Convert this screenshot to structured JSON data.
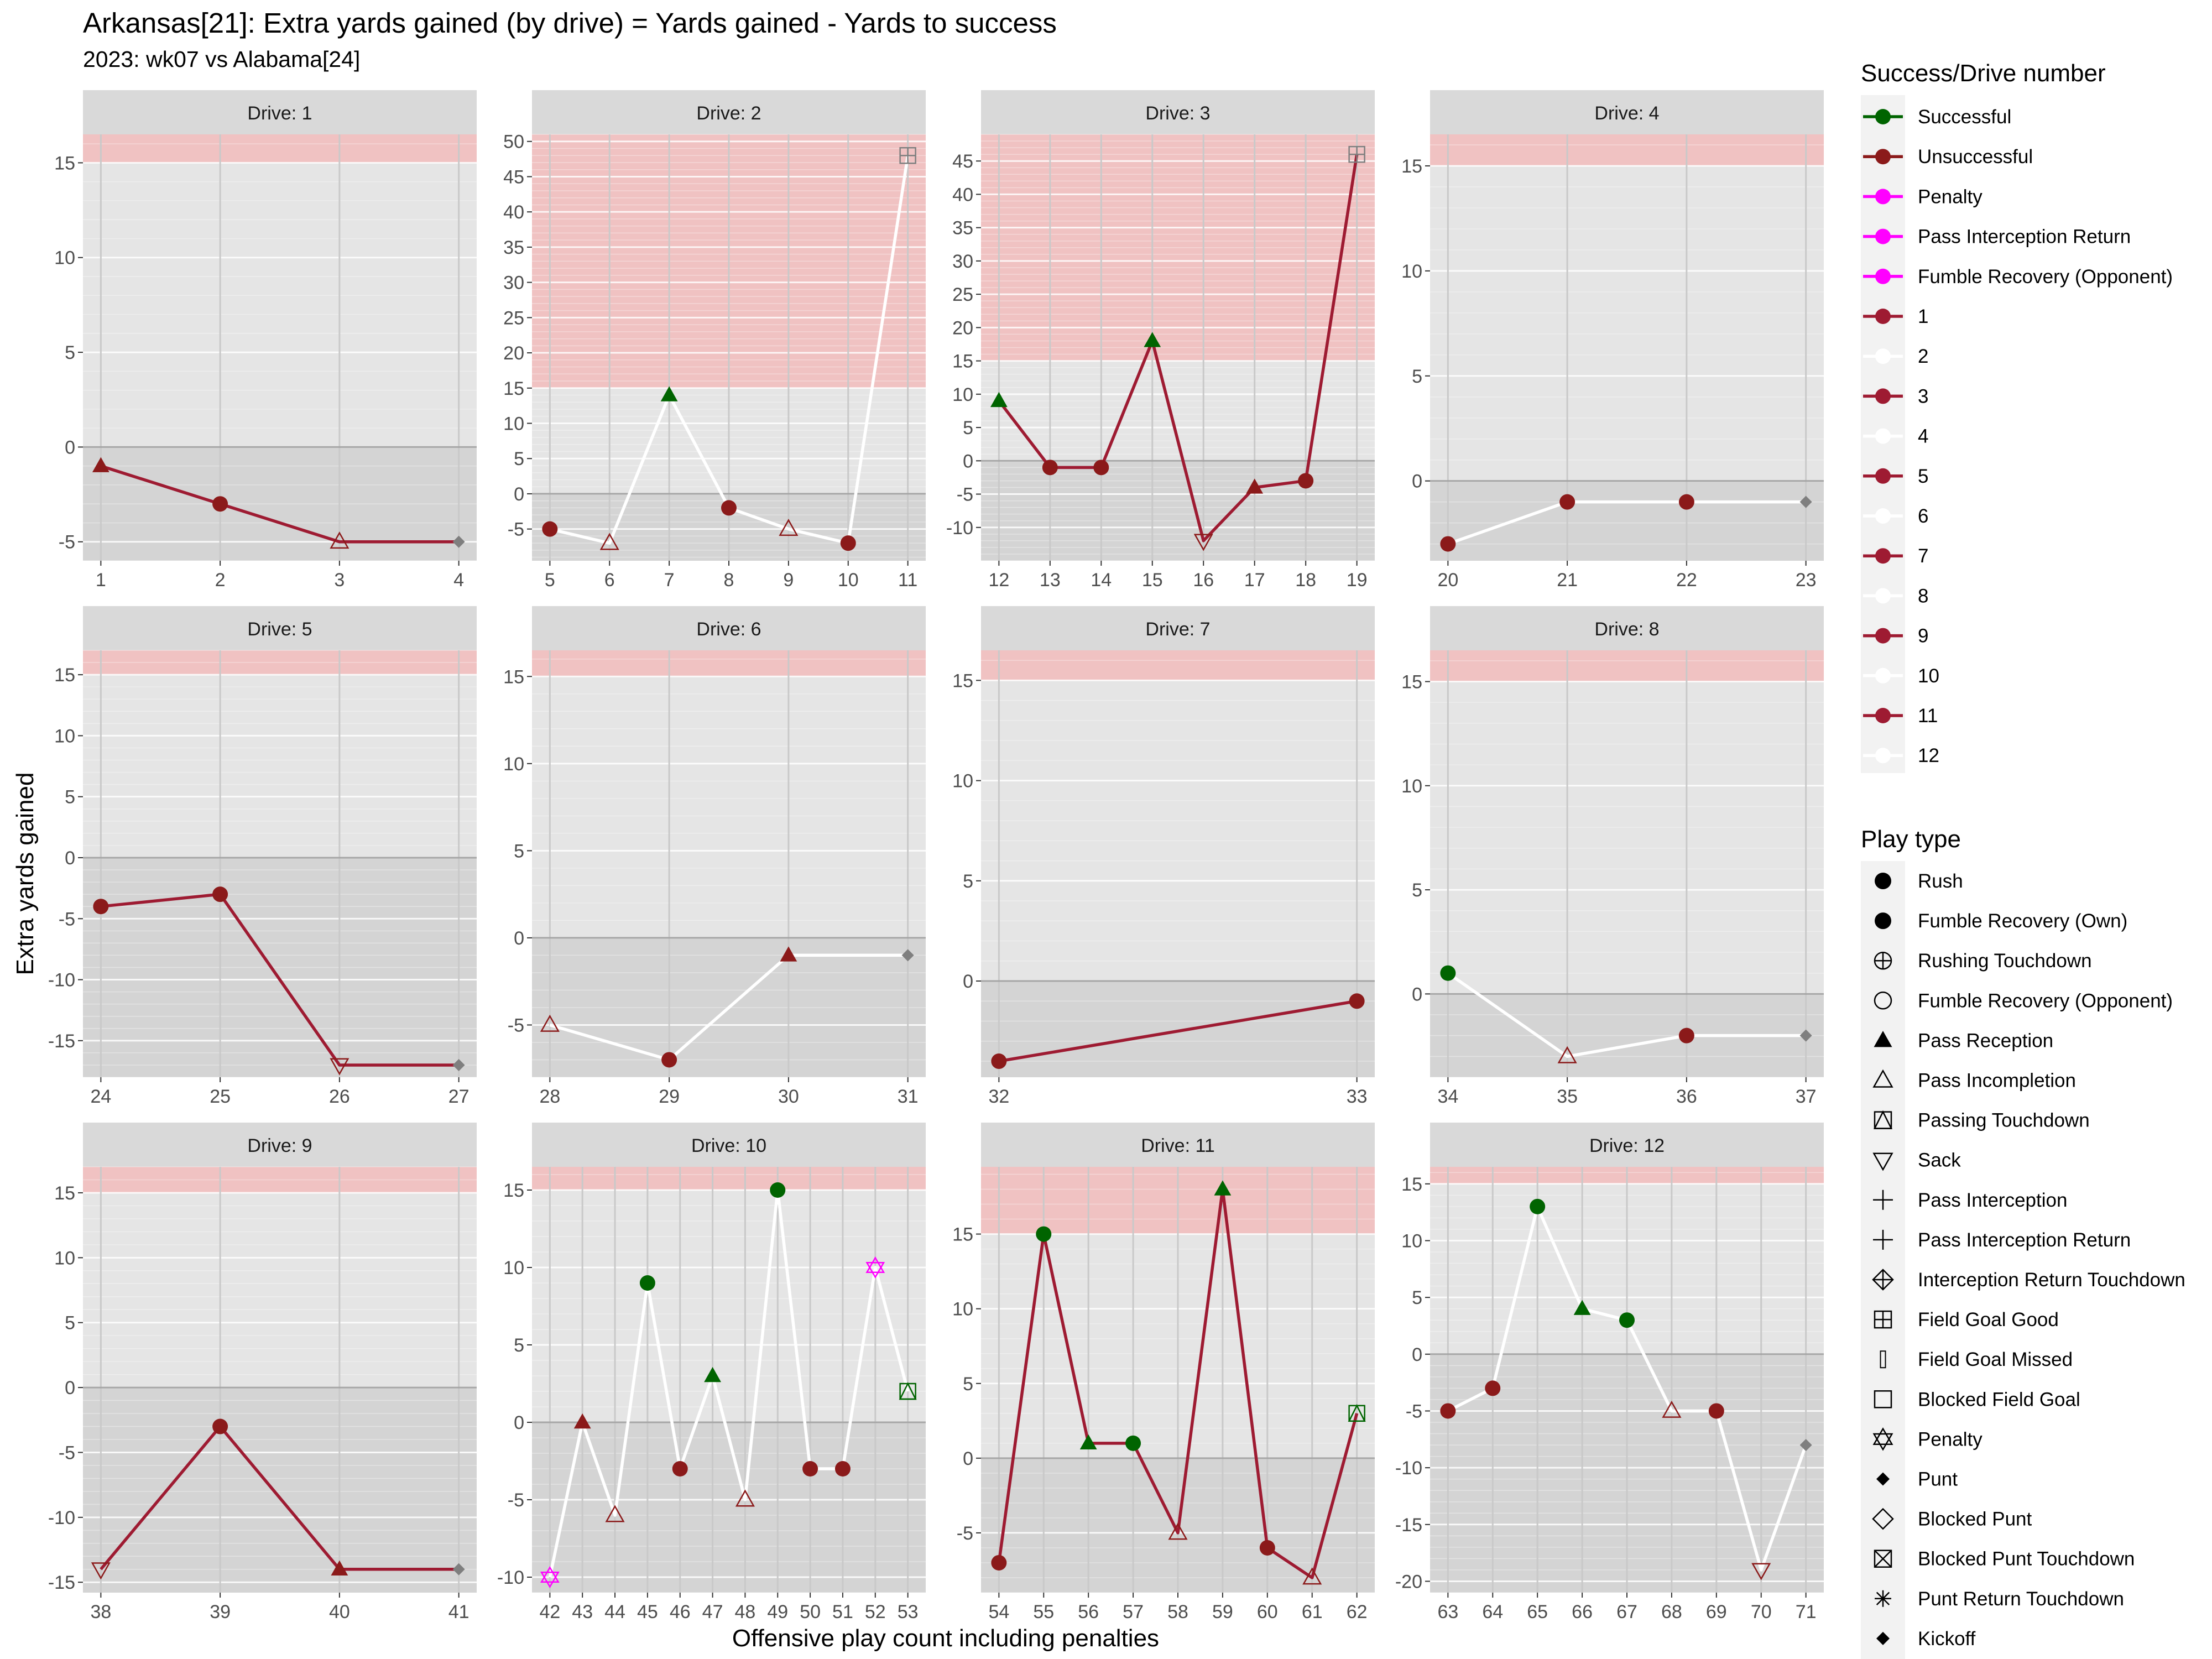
{
  "title": "Arkansas[21]: Extra yards gained (by drive) = Yards gained - Yards to success",
  "subtitle": "2023: wk07 vs Alabama[24]",
  "colors": {
    "panel_bg": "#e5e5e5",
    "shade_below_zero": "#d4d4d4",
    "success_band": "#f0c2c2",
    "strip_bg": "#d9d9d9",
    "successful": "#006400",
    "unsuccessful": "#8b1a1a",
    "penalty": "#ff00ff",
    "drive_line_odd": "#9e1b32",
    "drive_line_even": "#ffffff",
    "end_marker": "#7f7f7f"
  },
  "chart_data": {
    "type": "line",
    "xlabel": "Offensive play count including penalties",
    "ylabel": "Extra yards gained",
    "success_threshold": 15,
    "panels": [
      {
        "label": "Drive: 1",
        "ylim": [
          -6,
          16.5
        ],
        "yticks": [
          -5,
          0,
          5,
          10,
          15
        ],
        "xticks": [
          1,
          2,
          3,
          4
        ],
        "points": [
          {
            "x": 1,
            "y": -1,
            "type": "pass-reception",
            "result": "unsuccessful"
          },
          {
            "x": 2,
            "y": -3,
            "type": "rush",
            "result": "unsuccessful"
          },
          {
            "x": 3,
            "y": -5,
            "type": "pass-incompletion",
            "result": "unsuccessful"
          },
          {
            "x": 4,
            "y": -5,
            "type": "punt",
            "result": "end"
          }
        ]
      },
      {
        "label": "Drive: 2",
        "ylim": [
          -9.5,
          51
        ],
        "yticks": [
          -5,
          0,
          5,
          10,
          15,
          20,
          25,
          30,
          35,
          40,
          45,
          50
        ],
        "xticks": [
          5,
          6,
          7,
          8,
          9,
          10,
          11
        ],
        "points": [
          {
            "x": 5,
            "y": -5,
            "type": "rush",
            "result": "unsuccessful"
          },
          {
            "x": 6,
            "y": -7,
            "type": "pass-incompletion",
            "result": "unsuccessful"
          },
          {
            "x": 7,
            "y": 14,
            "type": "pass-reception",
            "result": "successful"
          },
          {
            "x": 8,
            "y": -2,
            "type": "rush",
            "result": "unsuccessful"
          },
          {
            "x": 9,
            "y": -5,
            "type": "pass-incompletion",
            "result": "unsuccessful"
          },
          {
            "x": 10,
            "y": -7,
            "type": "rush",
            "result": "unsuccessful"
          },
          {
            "x": 11,
            "y": 48,
            "type": "field-goal-good",
            "result": "end"
          }
        ]
      },
      {
        "label": "Drive: 3",
        "ylim": [
          -15,
          49
        ],
        "yticks": [
          -10,
          -5,
          0,
          5,
          10,
          15,
          20,
          25,
          30,
          35,
          40,
          45
        ],
        "xticks": [
          12,
          13,
          14,
          15,
          16,
          17,
          18,
          19
        ],
        "points": [
          {
            "x": 12,
            "y": 9,
            "type": "pass-reception",
            "result": "successful"
          },
          {
            "x": 13,
            "y": -1,
            "type": "rush",
            "result": "unsuccessful"
          },
          {
            "x": 14,
            "y": -1,
            "type": "rush",
            "result": "unsuccessful"
          },
          {
            "x": 15,
            "y": 18,
            "type": "pass-reception",
            "result": "successful"
          },
          {
            "x": 16,
            "y": -12,
            "type": "sack",
            "result": "unsuccessful"
          },
          {
            "x": 17,
            "y": -4,
            "type": "pass-reception",
            "result": "unsuccessful"
          },
          {
            "x": 18,
            "y": -3,
            "type": "rush",
            "result": "unsuccessful"
          },
          {
            "x": 19,
            "y": 46,
            "type": "field-goal-good",
            "result": "end"
          }
        ]
      },
      {
        "label": "Drive: 4",
        "ylim": [
          -3.8,
          16.5
        ],
        "yticks": [
          0,
          5,
          10,
          15
        ],
        "xticks": [
          20,
          21,
          22,
          23
        ],
        "points": [
          {
            "x": 20,
            "y": -3,
            "type": "rush",
            "result": "unsuccessful"
          },
          {
            "x": 21,
            "y": -1,
            "type": "rush",
            "result": "unsuccessful"
          },
          {
            "x": 22,
            "y": -1,
            "type": "rush",
            "result": "unsuccessful"
          },
          {
            "x": 23,
            "y": -1,
            "type": "punt",
            "result": "end"
          }
        ]
      },
      {
        "label": "Drive: 5",
        "ylim": [
          -18,
          17
        ],
        "yticks": [
          -15,
          -10,
          -5,
          0,
          5,
          10,
          15
        ],
        "xticks": [
          24,
          25,
          26,
          27
        ],
        "points": [
          {
            "x": 24,
            "y": -4,
            "type": "rush",
            "result": "unsuccessful"
          },
          {
            "x": 25,
            "y": -3,
            "type": "rush",
            "result": "unsuccessful"
          },
          {
            "x": 26,
            "y": -17,
            "type": "sack",
            "result": "unsuccessful"
          },
          {
            "x": 27,
            "y": -17,
            "type": "punt",
            "result": "end"
          }
        ]
      },
      {
        "label": "Drive: 6",
        "ylim": [
          -8,
          16.5
        ],
        "yticks": [
          -5,
          0,
          5,
          10,
          15
        ],
        "xticks": [
          28,
          29,
          30,
          31
        ],
        "points": [
          {
            "x": 28,
            "y": -5,
            "type": "pass-incompletion",
            "result": "unsuccessful"
          },
          {
            "x": 29,
            "y": -7,
            "type": "rush",
            "result": "unsuccessful"
          },
          {
            "x": 30,
            "y": -1,
            "type": "pass-reception",
            "result": "unsuccessful"
          },
          {
            "x": 31,
            "y": -1,
            "type": "punt",
            "result": "end"
          }
        ]
      },
      {
        "label": "Drive: 7",
        "ylim": [
          -4.8,
          16.5
        ],
        "yticks": [
          0,
          5,
          10,
          15
        ],
        "xticks": [
          32,
          33
        ],
        "points": [
          {
            "x": 32,
            "y": -4,
            "type": "rush",
            "result": "unsuccessful"
          },
          {
            "x": 33,
            "y": -1,
            "type": "rush",
            "result": "unsuccessful"
          }
        ]
      },
      {
        "label": "Drive: 8",
        "ylim": [
          -4,
          16.5
        ],
        "yticks": [
          0,
          5,
          10,
          15
        ],
        "xticks": [
          34,
          35,
          36,
          37
        ],
        "points": [
          {
            "x": 34,
            "y": 1,
            "type": "rush",
            "result": "successful"
          },
          {
            "x": 35,
            "y": -3,
            "type": "pass-incompletion",
            "result": "unsuccessful"
          },
          {
            "x": 36,
            "y": -2,
            "type": "rush",
            "result": "unsuccessful"
          },
          {
            "x": 37,
            "y": -2,
            "type": "punt",
            "result": "end"
          }
        ]
      },
      {
        "label": "Drive: 9",
        "ylim": [
          -15.8,
          17
        ],
        "yticks": [
          -15,
          -10,
          -5,
          0,
          5,
          10,
          15
        ],
        "xticks": [
          38,
          39,
          40,
          41
        ],
        "points": [
          {
            "x": 38,
            "y": -14,
            "type": "sack",
            "result": "unsuccessful"
          },
          {
            "x": 39,
            "y": -3,
            "type": "rush",
            "result": "unsuccessful"
          },
          {
            "x": 40,
            "y": -14,
            "type": "pass-reception",
            "result": "unsuccessful"
          },
          {
            "x": 41,
            "y": -14,
            "type": "punt",
            "result": "end"
          }
        ]
      },
      {
        "label": "Drive: 10",
        "ylim": [
          -11,
          16.5
        ],
        "yticks": [
          -10,
          -5,
          0,
          5,
          10,
          15
        ],
        "xticks": [
          42,
          43,
          44,
          45,
          46,
          47,
          48,
          49,
          50,
          51,
          52,
          53
        ],
        "points": [
          {
            "x": 42,
            "y": -10,
            "type": "penalty",
            "result": "penalty"
          },
          {
            "x": 43,
            "y": 0,
            "type": "pass-reception",
            "result": "unsuccessful"
          },
          {
            "x": 44,
            "y": -6,
            "type": "pass-incompletion",
            "result": "unsuccessful"
          },
          {
            "x": 45,
            "y": 9,
            "type": "rush",
            "result": "successful"
          },
          {
            "x": 46,
            "y": -3,
            "type": "rush",
            "result": "unsuccessful"
          },
          {
            "x": 47,
            "y": 3,
            "type": "pass-reception",
            "result": "successful"
          },
          {
            "x": 48,
            "y": -5,
            "type": "pass-incompletion",
            "result": "unsuccessful"
          },
          {
            "x": 49,
            "y": 15,
            "type": "rush",
            "result": "successful"
          },
          {
            "x": 50,
            "y": -3,
            "type": "rush",
            "result": "unsuccessful"
          },
          {
            "x": 51,
            "y": -3,
            "type": "rush",
            "result": "unsuccessful"
          },
          {
            "x": 52,
            "y": 10,
            "type": "penalty",
            "result": "penalty"
          },
          {
            "x": 53,
            "y": 2,
            "type": "passing-touchdown",
            "result": "successful"
          }
        ]
      },
      {
        "label": "Drive: 11",
        "ylim": [
          -9,
          19.5
        ],
        "yticks": [
          -5,
          0,
          5,
          10,
          15
        ],
        "xticks": [
          54,
          55,
          56,
          57,
          58,
          59,
          60,
          61,
          62
        ],
        "points": [
          {
            "x": 54,
            "y": -7,
            "type": "rush",
            "result": "unsuccessful"
          },
          {
            "x": 55,
            "y": 15,
            "type": "rush",
            "result": "successful"
          },
          {
            "x": 56,
            "y": 1,
            "type": "pass-reception",
            "result": "successful"
          },
          {
            "x": 57,
            "y": 1,
            "type": "rush",
            "result": "successful"
          },
          {
            "x": 58,
            "y": -5,
            "type": "pass-incompletion",
            "result": "unsuccessful"
          },
          {
            "x": 59,
            "y": 18,
            "type": "pass-reception",
            "result": "successful"
          },
          {
            "x": 60,
            "y": -6,
            "type": "rush",
            "result": "unsuccessful"
          },
          {
            "x": 61,
            "y": -8,
            "type": "pass-incompletion",
            "result": "unsuccessful"
          },
          {
            "x": 62,
            "y": 3,
            "type": "passing-touchdown",
            "result": "successful"
          }
        ]
      },
      {
        "label": "Drive: 12",
        "ylim": [
          -21,
          16.5
        ],
        "yticks": [
          -20,
          -15,
          -10,
          -5,
          0,
          5,
          10,
          15
        ],
        "xticks": [
          63,
          64,
          65,
          66,
          67,
          68,
          69,
          70,
          71
        ],
        "points": [
          {
            "x": 63,
            "y": -5,
            "type": "rush",
            "result": "unsuccessful"
          },
          {
            "x": 64,
            "y": -3,
            "type": "rush",
            "result": "unsuccessful"
          },
          {
            "x": 65,
            "y": 13,
            "type": "rush",
            "result": "successful"
          },
          {
            "x": 66,
            "y": 4,
            "type": "pass-reception",
            "result": "successful"
          },
          {
            "x": 67,
            "y": 3,
            "type": "rush",
            "result": "successful"
          },
          {
            "x": 68,
            "y": -5,
            "type": "pass-incompletion",
            "result": "unsuccessful"
          },
          {
            "x": 69,
            "y": -5,
            "type": "rush",
            "result": "unsuccessful"
          },
          {
            "x": 70,
            "y": -19,
            "type": "sack",
            "result": "unsuccessful"
          },
          {
            "x": 71,
            "y": -8,
            "type": "punt",
            "result": "end"
          }
        ]
      }
    ],
    "legend_success": {
      "title": "Success/Drive number",
      "entries": [
        {
          "label": "Successful",
          "line": "#006400",
          "dot": "#006400"
        },
        {
          "label": "Unsuccessful",
          "line": "#8b1a1a",
          "dot": "#8b1a1a"
        },
        {
          "label": "Penalty",
          "line": "#ff00ff",
          "dot": "#ff00ff"
        },
        {
          "label": "Pass Interception Return",
          "line": "#ff00ff",
          "dot": "#ff00ff"
        },
        {
          "label": "Fumble Recovery (Opponent)",
          "line": "#ff00ff",
          "dot": "#ff00ff"
        },
        {
          "label": "1",
          "line": "#9e1b32",
          "dot": "#9e1b32"
        },
        {
          "label": "2",
          "line": "#ffffff",
          "dot": "#ffffff"
        },
        {
          "label": "3",
          "line": "#9e1b32",
          "dot": "#9e1b32"
        },
        {
          "label": "4",
          "line": "#ffffff",
          "dot": "#ffffff"
        },
        {
          "label": "5",
          "line": "#9e1b32",
          "dot": "#9e1b32"
        },
        {
          "label": "6",
          "line": "#ffffff",
          "dot": "#ffffff"
        },
        {
          "label": "7",
          "line": "#9e1b32",
          "dot": "#9e1b32"
        },
        {
          "label": "8",
          "line": "#ffffff",
          "dot": "#ffffff"
        },
        {
          "label": "9",
          "line": "#9e1b32",
          "dot": "#9e1b32"
        },
        {
          "label": "10",
          "line": "#ffffff",
          "dot": "#ffffff"
        },
        {
          "label": "11",
          "line": "#9e1b32",
          "dot": "#9e1b32"
        },
        {
          "label": "12",
          "line": "#ffffff",
          "dot": "#ffffff"
        }
      ]
    },
    "legend_play_type": {
      "title": "Play type",
      "entries": [
        {
          "label": "Rush",
          "shape": "circle-filled"
        },
        {
          "label": "Fumble Recovery (Own)",
          "shape": "circle-filled"
        },
        {
          "label": "Rushing Touchdown",
          "shape": "circle-plus"
        },
        {
          "label": "Fumble Recovery (Opponent)",
          "shape": "circle-open"
        },
        {
          "label": "Pass Reception",
          "shape": "triangle-filled"
        },
        {
          "label": "Pass Incompletion",
          "shape": "triangle-open"
        },
        {
          "label": "Passing Touchdown",
          "shape": "triangle-square"
        },
        {
          "label": "Sack",
          "shape": "triangle-down-open"
        },
        {
          "label": "Pass Interception",
          "shape": "plus"
        },
        {
          "label": "Pass Interception Return",
          "shape": "plus"
        },
        {
          "label": "Interception Return Touchdown",
          "shape": "diamond-plus"
        },
        {
          "label": "Field Goal Good",
          "shape": "square-plus"
        },
        {
          "label": "Field Goal Missed",
          "shape": "thin-rect"
        },
        {
          "label": "Blocked Field Goal",
          "shape": "square-open"
        },
        {
          "label": "Penalty",
          "shape": "star-of-david"
        },
        {
          "label": "Punt",
          "shape": "diamond-filled"
        },
        {
          "label": "Blocked Punt",
          "shape": "diamond-open"
        },
        {
          "label": "Blocked Punt Touchdown",
          "shape": "square-x"
        },
        {
          "label": "Punt Return Touchdown",
          "shape": "asterisk"
        },
        {
          "label": "Kickoff",
          "shape": "diamond-filled"
        }
      ]
    }
  }
}
